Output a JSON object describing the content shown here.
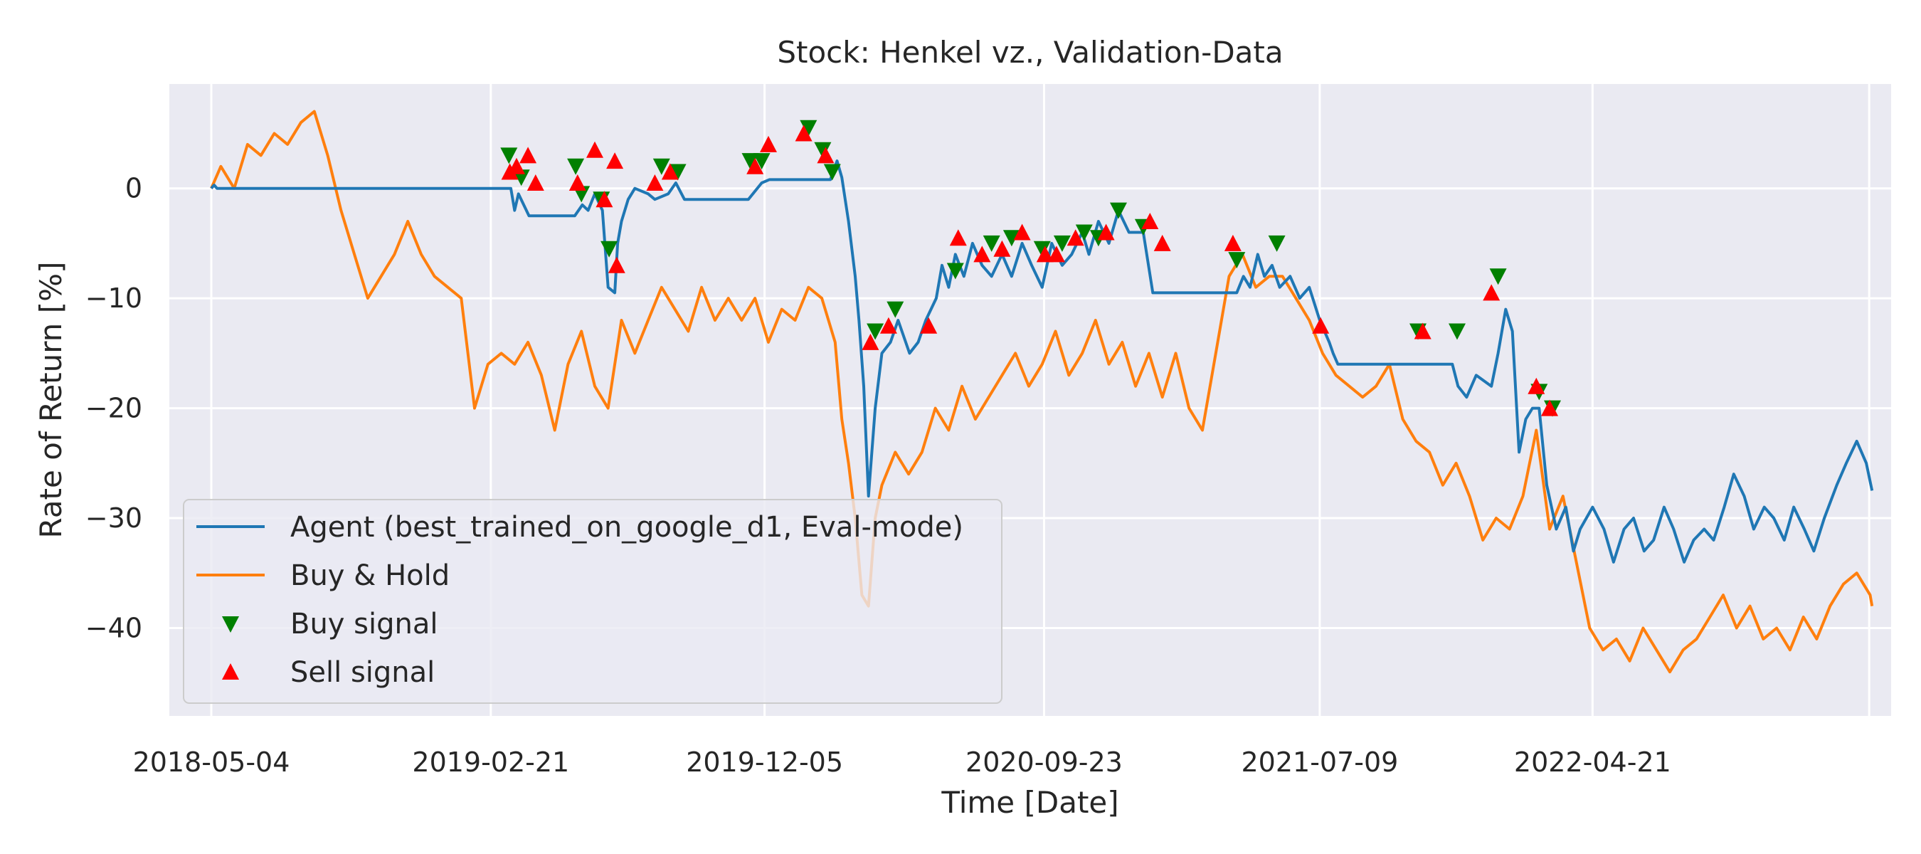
{
  "chart_data": {
    "type": "line",
    "title": "Stock: Henkel vz., Validation-Data",
    "xlabel": "Time [Date]",
    "ylabel": "Rate of Return [%]",
    "x_ticks": [
      "2018-05-04",
      "2019-02-21",
      "2019-12-05",
      "2020-09-23",
      "2021-07-09",
      "2022-04-21"
    ],
    "xlim": [
      "2018-03-21",
      "2023-02-28"
    ],
    "ylim": [
      -48,
      9.5
    ],
    "y_ticks": [
      0,
      -10,
      -20,
      -30,
      -40
    ],
    "grid": true,
    "legend_position": "lower-left",
    "colors": {
      "background": "#eaeaf2",
      "grid": "#ffffff",
      "agent": "#1f77b4",
      "buy_hold": "#ff7f0e",
      "buy": "#008000",
      "sell": "#ff0000"
    },
    "series": [
      {
        "name": "Agent (best_trained_on_google_d1, Eval-mode)",
        "x": [
          "2018-05-04",
          "2018-05-07",
          "2018-05-10",
          "2019-03-14",
          "2019-03-18",
          "2019-03-22",
          "2019-04-02",
          "2019-05-20",
          "2019-05-28",
          "2019-06-03",
          "2019-06-10",
          "2019-06-18",
          "2019-06-24",
          "2019-07-01",
          "2019-07-04",
          "2019-07-08",
          "2019-07-15",
          "2019-07-22",
          "2019-08-05",
          "2019-08-12",
          "2019-08-26",
          "2019-09-03",
          "2019-09-12",
          "2019-09-16",
          "2019-11-18",
          "2019-12-02",
          "2019-12-10",
          "2019-12-13",
          "2020-02-12",
          "2020-02-19",
          "2020-02-24",
          "2020-03-02",
          "2020-03-09",
          "2020-03-13",
          "2020-03-18",
          "2020-03-23",
          "2020-03-30",
          "2020-04-06",
          "2020-04-15",
          "2020-04-23",
          "2020-05-05",
          "2020-05-14",
          "2020-05-22",
          "2020-06-02",
          "2020-06-08",
          "2020-06-15",
          "2020-06-22",
          "2020-07-01",
          "2020-07-10",
          "2020-07-20",
          "2020-07-30",
          "2020-08-10",
          "2020-08-20",
          "2020-08-31",
          "2020-09-10",
          "2020-09-21",
          "2020-10-01",
          "2020-10-12",
          "2020-10-22",
          "2020-11-02",
          "2020-11-09",
          "2020-11-19",
          "2020-11-30",
          "2020-12-10",
          "2020-12-21",
          "2021-01-05",
          "2021-01-15",
          "2021-01-26",
          "2021-02-05",
          "2021-02-10",
          "2021-04-13",
          "2021-04-20",
          "2021-04-27",
          "2021-05-05",
          "2021-05-12",
          "2021-05-20",
          "2021-05-28",
          "2021-06-08",
          "2021-06-18",
          "2021-06-28",
          "2021-07-09",
          "2021-07-19",
          "2021-07-23",
          "2021-07-28",
          "2021-10-20",
          "2021-10-22",
          "2021-11-25",
          "2021-12-01",
          "2021-12-10",
          "2021-12-20",
          "2022-01-05",
          "2022-01-12",
          "2022-01-20",
          "2022-01-27",
          "2022-02-03",
          "2022-02-10",
          "2022-02-17",
          "2022-02-24",
          "2022-03-04",
          "2022-03-14",
          "2022-03-24",
          "2022-04-01",
          "2022-04-08",
          "2022-04-21",
          "2022-05-03",
          "2022-05-13",
          "2022-05-24",
          "2022-06-03",
          "2022-06-14",
          "2022-06-24",
          "2022-07-05",
          "2022-07-15",
          "2022-07-26",
          "2022-08-05",
          "2022-08-16",
          "2022-08-26",
          "2022-09-06",
          "2022-09-16",
          "2022-09-27",
          "2022-10-07",
          "2022-10-18",
          "2022-10-28",
          "2022-11-08",
          "2022-11-18",
          "2022-11-29",
          "2022-12-09",
          "2022-12-20",
          "2023-01-02",
          "2023-01-12",
          "2023-01-23",
          "2023-02-02",
          "2023-02-08"
        ],
        "y": [
          0,
          0.3,
          0,
          0,
          -2,
          -0.5,
          -2.5,
          -2.5,
          -1.5,
          -2,
          -0.5,
          -2,
          -9,
          -9.5,
          -5,
          -3,
          -1,
          0,
          -0.5,
          -1,
          -0.5,
          0.5,
          -1,
          -1,
          -1,
          0.5,
          0.8,
          0.8,
          0.8,
          2.5,
          1,
          -3,
          -8,
          -12,
          -18,
          -28,
          -20,
          -15,
          -14,
          -12,
          -15,
          -14,
          -12,
          -10,
          -7,
          -9,
          -6,
          -8,
          -5,
          -7,
          -8,
          -6,
          -8,
          -5,
          -7,
          -9,
          -5,
          -7,
          -6,
          -4,
          -6,
          -3,
          -5,
          -2,
          -4,
          -4,
          -9.5,
          -9.5,
          -9.5,
          -9.5,
          -9.5,
          -8,
          -9,
          -6,
          -8,
          -7,
          -9,
          -8,
          -10,
          -9,
          -12,
          -14,
          -15,
          -16,
          -16,
          -16,
          -16,
          -18,
          -19,
          -17,
          -18,
          -15,
          -11,
          -13,
          -24,
          -21,
          -20,
          -20,
          -27,
          -31,
          -29,
          -33,
          -31,
          -29,
          -31,
          -34,
          -31,
          -30,
          -33,
          -32,
          -29,
          -31,
          -34,
          -32,
          -31,
          -32,
          -29,
          -26,
          -28,
          -31,
          -29,
          -30,
          -32,
          -29,
          -31,
          -33,
          -30,
          -27,
          -25,
          -23,
          -25,
          -27.5
        ]
      },
      {
        "name": "Buy & Hold",
        "x": [
          "2018-05-04",
          "2018-05-14",
          "2018-05-28",
          "2018-06-11",
          "2018-06-25",
          "2018-07-09",
          "2018-07-23",
          "2018-08-06",
          "2018-08-20",
          "2018-09-03",
          "2018-09-17",
          "2018-10-01",
          "2018-10-15",
          "2018-10-29",
          "2018-11-12",
          "2018-11-26",
          "2018-12-10",
          "2018-12-24",
          "2019-01-07",
          "2019-01-21",
          "2019-02-04",
          "2019-02-18",
          "2019-03-04",
          "2019-03-18",
          "2019-04-01",
          "2019-04-15",
          "2019-04-29",
          "2019-05-13",
          "2019-05-27",
          "2019-06-10",
          "2019-06-24",
          "2019-07-08",
          "2019-07-22",
          "2019-08-05",
          "2019-08-19",
          "2019-09-02",
          "2019-09-16",
          "2019-09-30",
          "2019-10-14",
          "2019-10-28",
          "2019-11-11",
          "2019-11-25",
          "2019-12-09",
          "2019-12-23",
          "2020-01-06",
          "2020-01-20",
          "2020-02-03",
          "2020-02-17",
          "2020-02-24",
          "2020-03-02",
          "2020-03-09",
          "2020-03-16",
          "2020-03-23",
          "2020-03-30",
          "2020-04-06",
          "2020-04-20",
          "2020-05-04",
          "2020-05-18",
          "2020-06-01",
          "2020-06-15",
          "2020-06-29",
          "2020-07-13",
          "2020-07-27",
          "2020-08-10",
          "2020-08-24",
          "2020-09-07",
          "2020-09-21",
          "2020-10-05",
          "2020-10-19",
          "2020-11-02",
          "2020-11-16",
          "2020-11-30",
          "2020-12-14",
          "2020-12-28",
          "2021-01-11",
          "2021-01-25",
          "2021-02-08",
          "2021-02-22",
          "2021-03-08",
          "2021-03-22",
          "2021-04-05",
          "2021-04-19",
          "2021-05-03",
          "2021-05-17",
          "2021-05-31",
          "2021-06-14",
          "2021-06-28",
          "2021-07-12",
          "2021-07-26",
          "2021-08-09",
          "2021-08-23",
          "2021-09-06",
          "2021-09-20",
          "2021-10-04",
          "2021-10-18",
          "2021-11-01",
          "2021-11-15",
          "2021-11-29",
          "2021-12-13",
          "2021-12-27",
          "2022-01-10",
          "2022-01-24",
          "2022-02-07",
          "2022-02-21",
          "2022-03-07",
          "2022-03-21",
          "2022-04-04",
          "2022-04-18",
          "2022-05-02",
          "2022-05-16",
          "2022-05-30",
          "2022-06-13",
          "2022-06-27",
          "2022-07-11",
          "2022-07-25",
          "2022-08-08",
          "2022-08-22",
          "2022-09-05",
          "2022-09-19",
          "2022-10-03",
          "2022-10-17",
          "2022-10-31",
          "2022-11-14",
          "2022-11-28",
          "2022-12-12",
          "2022-12-26",
          "2023-01-09",
          "2023-01-23",
          "2023-02-06",
          "2023-02-08"
        ],
        "y": [
          0,
          2,
          0,
          4,
          3,
          5,
          4,
          6,
          7,
          3,
          -2,
          -6,
          -10,
          -8,
          -6,
          -3,
          -6,
          -8,
          -9,
          -10,
          -20,
          -16,
          -15,
          -16,
          -14,
          -17,
          -22,
          -16,
          -13,
          -18,
          -20,
          -12,
          -15,
          -12,
          -9,
          -11,
          -13,
          -9,
          -12,
          -10,
          -12,
          -10,
          -14,
          -11,
          -12,
          -9,
          -10,
          -14,
          -21,
          -25,
          -30,
          -37,
          -38,
          -30,
          -27,
          -24,
          -26,
          -24,
          -20,
          -22,
          -18,
          -21,
          -19,
          -17,
          -15,
          -18,
          -16,
          -13,
          -17,
          -15,
          -12,
          -16,
          -14,
          -18,
          -15,
          -19,
          -15,
          -20,
          -22,
          -15,
          -8,
          -6,
          -9,
          -8,
          -8,
          -10,
          -12,
          -15,
          -17,
          -18,
          -19,
          -18,
          -16,
          -21,
          -23,
          -24,
          -27,
          -25,
          -28,
          -32,
          -30,
          -31,
          -28,
          -22,
          -31,
          -28,
          -34,
          -40,
          -42,
          -41,
          -43,
          -40,
          -42,
          -44,
          -42,
          -41,
          -39,
          -37,
          -40,
          -38,
          -41,
          -40,
          -42,
          -39,
          -41,
          -38,
          -36,
          -35,
          -37,
          -38
        ]
      }
    ],
    "buy_signals": {
      "name": "Buy signal",
      "points": [
        [
          "2019-03-12",
          3
        ],
        [
          "2019-03-25",
          1
        ],
        [
          "2019-05-21",
          2
        ],
        [
          "2019-05-27",
          -0.5
        ],
        [
          "2019-06-17",
          -1
        ],
        [
          "2019-06-25",
          -5.5
        ],
        [
          "2019-08-19",
          2
        ],
        [
          "2019-09-05",
          1.5
        ],
        [
          "2019-11-20",
          2.5
        ],
        [
          "2019-12-02",
          2.5
        ],
        [
          "2020-01-20",
          5.5
        ],
        [
          "2020-02-04",
          3.5
        ],
        [
          "2020-02-14",
          1.5
        ],
        [
          "2020-03-30",
          -13
        ],
        [
          "2020-04-20",
          -11
        ],
        [
          "2020-06-22",
          -7.5
        ],
        [
          "2020-07-30",
          -5
        ],
        [
          "2020-08-20",
          -4.5
        ],
        [
          "2020-09-21",
          -5.5
        ],
        [
          "2020-10-12",
          -5
        ],
        [
          "2020-11-04",
          -4
        ],
        [
          "2020-11-19",
          -4.5
        ],
        [
          "2020-12-10",
          -2
        ],
        [
          "2021-01-05",
          -3.5
        ],
        [
          "2021-04-13",
          -6.5
        ],
        [
          "2021-05-25",
          -5
        ],
        [
          "2021-10-20",
          -13
        ],
        [
          "2021-11-30",
          -13
        ],
        [
          "2022-01-12",
          -8
        ],
        [
          "2022-02-24",
          -18.5
        ],
        [
          "2022-03-10",
          -20
        ]
      ]
    },
    "sell_signals": {
      "name": "Sell signal",
      "points": [
        [
          "2019-03-13",
          1.5
        ],
        [
          "2019-03-20",
          2
        ],
        [
          "2019-04-01",
          3
        ],
        [
          "2019-04-09",
          0.5
        ],
        [
          "2019-05-23",
          0.5
        ],
        [
          "2019-06-10",
          3.5
        ],
        [
          "2019-06-20",
          -1
        ],
        [
          "2019-07-01",
          2.5
        ],
        [
          "2019-07-03",
          -7
        ],
        [
          "2019-08-12",
          0.5
        ],
        [
          "2019-08-28",
          1.5
        ],
        [
          "2019-11-25",
          2
        ],
        [
          "2019-12-09",
          4
        ],
        [
          "2020-01-15",
          5
        ],
        [
          "2020-02-07",
          3
        ],
        [
          "2020-03-25",
          -14
        ],
        [
          "2020-04-13",
          -12.5
        ],
        [
          "2020-05-25",
          -12.5
        ],
        [
          "2020-06-25",
          -4.5
        ],
        [
          "2020-07-20",
          -6
        ],
        [
          "2020-08-10",
          -5.5
        ],
        [
          "2020-08-31",
          -4
        ],
        [
          "2020-09-24",
          -6
        ],
        [
          "2020-10-06",
          -6
        ],
        [
          "2020-10-26",
          -4.5
        ],
        [
          "2020-11-27",
          -4
        ],
        [
          "2021-01-12",
          -3
        ],
        [
          "2021-01-25",
          -5
        ],
        [
          "2021-04-09",
          -5
        ],
        [
          "2021-07-10",
          -12.5
        ],
        [
          "2021-10-25",
          -13
        ],
        [
          "2022-01-05",
          -9.5
        ],
        [
          "2022-02-21",
          -18
        ],
        [
          "2022-03-07",
          -20
        ]
      ]
    }
  }
}
